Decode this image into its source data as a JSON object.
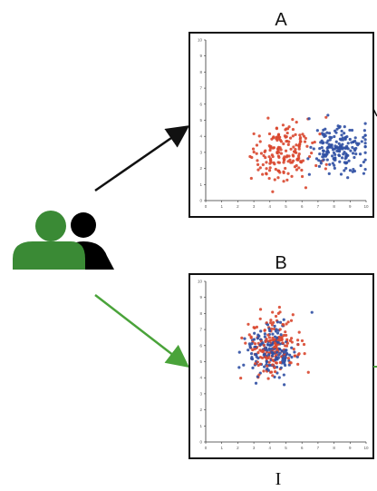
{
  "diagram": {
    "label_a": "A",
    "label_b": "B",
    "label_bottom": "I"
  },
  "colors": {
    "series_red": "#d9472f",
    "series_blue": "#2f4fa3",
    "arrow_black": "#111111",
    "arrow_green": "#4aa33a",
    "person_front": "#3a8a35",
    "person_back": "#000000"
  },
  "icons": {
    "users": "users-icon"
  },
  "chart_data": [
    {
      "type": "scatter",
      "title": "A",
      "xlim": [
        0,
        10
      ],
      "ylim": [
        0,
        10
      ],
      "x_ticks": [
        0,
        1,
        2,
        3,
        4,
        5,
        6,
        7,
        8,
        9,
        10
      ],
      "y_ticks": [
        0,
        1,
        2,
        3,
        4,
        5,
        6,
        7,
        8,
        9,
        10
      ],
      "grid": false,
      "series": [
        {
          "color": "#d9472f",
          "center": [
            4.8,
            3.0
          ],
          "spread": [
            1.0,
            0.9
          ],
          "count": 180
        },
        {
          "color": "#2f4fa3",
          "center": [
            8.3,
            3.2
          ],
          "spread": [
            0.85,
            0.8
          ],
          "count": 180
        }
      ]
    },
    {
      "type": "scatter",
      "title": "B",
      "xlim": [
        0,
        10
      ],
      "ylim": [
        0,
        10
      ],
      "x_ticks": [
        0,
        1,
        2,
        3,
        4,
        5,
        6,
        7,
        8,
        9,
        10
      ],
      "y_ticks": [
        0,
        1,
        2,
        3,
        4,
        5,
        6,
        7,
        8,
        9,
        10
      ],
      "grid": false,
      "series": [
        {
          "color": "#d9472f",
          "center": [
            4.2,
            6.0
          ],
          "spread": [
            0.75,
            0.8
          ],
          "count": 170
        },
        {
          "color": "#2f4fa3",
          "center": [
            4.0,
            5.7
          ],
          "spread": [
            0.8,
            0.85
          ],
          "count": 170
        }
      ]
    }
  ]
}
